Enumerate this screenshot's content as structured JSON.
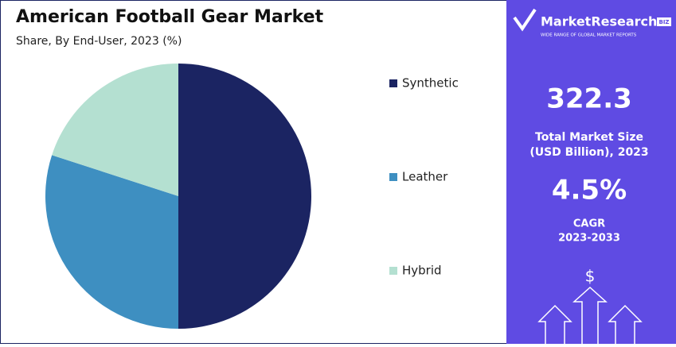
{
  "chart_data": {
    "type": "pie",
    "title": "American Football Gear Market",
    "subtitle": "Share, By End-User, 2023 (%)",
    "categories": [
      "Synthetic",
      "Leather",
      "Hybrid"
    ],
    "values": [
      50,
      30,
      20
    ],
    "colors": [
      "#1b2462",
      "#3e8fc1",
      "#b4e0d1"
    ],
    "legend": "right"
  },
  "panel": {
    "brand": "MarketResearch",
    "brand_suffix": "BIZ",
    "tagline": "WIDE RANGE OF GLOBAL MARKET REPORTS",
    "market_size": "322.3",
    "market_size_label": [
      "Total Market Size",
      "(USD Billion), 2023"
    ],
    "cagr": "4.5%",
    "cagr_label": [
      "CAGR",
      "2023-2033"
    ],
    "icon_symbol": "$"
  }
}
